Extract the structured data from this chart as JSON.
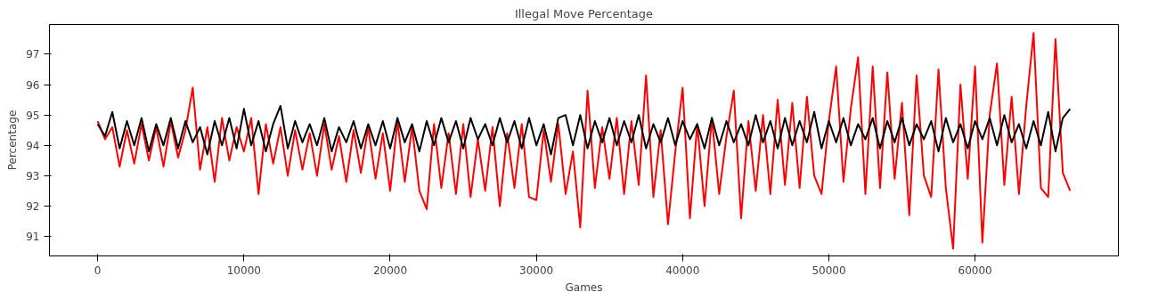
{
  "chart_data": {
    "type": "line",
    "title": "Illegal Move Percentage",
    "xlabel": "Games",
    "ylabel": "Percentage",
    "x": [
      0,
      500,
      1000,
      1500,
      2000,
      2500,
      3000,
      3500,
      4000,
      4500,
      5000,
      5500,
      6000,
      6500,
      7000,
      7500,
      8000,
      8500,
      9000,
      9500,
      10000,
      10500,
      11000,
      11500,
      12000,
      12500,
      13000,
      13500,
      14000,
      14500,
      15000,
      15500,
      16000,
      16500,
      17000,
      17500,
      18000,
      18500,
      19000,
      19500,
      20000,
      20500,
      21000,
      21500,
      22000,
      22500,
      23000,
      23500,
      24000,
      24500,
      25000,
      25500,
      26000,
      26500,
      27000,
      27500,
      28000,
      28500,
      29000,
      29500,
      30000,
      30500,
      31000,
      31500,
      32000,
      32500,
      33000,
      33500,
      34000,
      34500,
      35000,
      35500,
      36000,
      36500,
      37000,
      37500,
      38000,
      38500,
      39000,
      39500,
      40000,
      40500,
      41000,
      41500,
      42000,
      42500,
      43000,
      43500,
      44000,
      44500,
      45000,
      45500,
      46000,
      46500,
      47000,
      47500,
      48000,
      48500,
      49000,
      49500,
      50000,
      50500,
      51000,
      51500,
      52000,
      52500,
      53000,
      53500,
      54000,
      54500,
      55000,
      55500,
      56000,
      56500,
      57000,
      57500,
      58000,
      58500,
      59000,
      59500,
      60000,
      60500,
      61000,
      61500,
      62000,
      62500,
      63000,
      63500,
      64000,
      64500,
      65000,
      65500,
      66000,
      66500
    ],
    "series": [
      {
        "color": "#ff0000",
        "values": [
          94.8,
          94.2,
          94.6,
          93.3,
          94.5,
          93.4,
          94.7,
          93.5,
          94.6,
          93.3,
          94.8,
          93.6,
          94.5,
          95.9,
          93.2,
          94.6,
          92.8,
          94.9,
          93.5,
          94.6,
          93.8,
          94.9,
          92.4,
          94.7,
          93.4,
          94.6,
          93.0,
          94.5,
          93.2,
          94.4,
          93.0,
          94.7,
          93.2,
          94.3,
          92.8,
          94.5,
          93.1,
          94.6,
          92.9,
          94.4,
          92.5,
          94.8,
          92.8,
          94.6,
          92.5,
          91.9,
          94.7,
          92.6,
          94.4,
          92.4,
          94.7,
          92.3,
          94.2,
          92.5,
          94.6,
          92.0,
          94.4,
          92.6,
          94.7,
          92.3,
          92.2,
          94.5,
          92.8,
          94.7,
          92.4,
          93.8,
          91.3,
          95.8,
          92.6,
          94.6,
          92.9,
          94.9,
          92.4,
          94.8,
          92.7,
          96.3,
          92.3,
          94.5,
          91.4,
          93.8,
          95.9,
          91.6,
          94.7,
          92.0,
          94.9,
          92.4,
          94.3,
          95.8,
          91.6,
          94.8,
          92.5,
          95.0,
          92.4,
          95.5,
          92.7,
          95.4,
          92.6,
          95.6,
          93.0,
          92.4,
          94.8,
          96.6,
          92.8,
          95.2,
          96.9,
          92.4,
          96.6,
          92.6,
          96.4,
          92.9,
          95.4,
          91.7,
          96.3,
          93.0,
          92.3,
          96.5,
          92.6,
          90.6,
          96.0,
          92.9,
          96.6,
          90.8,
          95.0,
          96.7,
          92.7,
          95.6,
          92.4,
          95.3,
          97.7,
          92.6,
          92.3,
          97.5,
          93.1,
          92.5
        ]
      },
      {
        "color": "#000000",
        "values": [
          94.7,
          94.3,
          95.1,
          93.9,
          94.8,
          94.0,
          94.9,
          93.8,
          94.7,
          94.0,
          94.9,
          93.9,
          94.8,
          94.1,
          94.6,
          93.7,
          94.8,
          94.0,
          94.9,
          93.9,
          95.2,
          94.0,
          94.8,
          93.8,
          94.7,
          95.3,
          93.9,
          94.8,
          94.1,
          94.7,
          94.0,
          94.9,
          93.8,
          94.6,
          94.1,
          94.8,
          93.9,
          94.7,
          94.0,
          94.8,
          93.9,
          94.9,
          94.1,
          94.7,
          93.8,
          94.8,
          94.0,
          94.9,
          94.1,
          94.8,
          93.9,
          94.9,
          94.2,
          94.7,
          94.0,
          94.9,
          94.1,
          94.8,
          93.9,
          94.9,
          94.0,
          94.7,
          93.7,
          94.9,
          95.0,
          94.0,
          95.0,
          93.9,
          94.8,
          94.1,
          94.9,
          94.0,
          94.8,
          94.1,
          95.0,
          93.9,
          94.7,
          94.1,
          94.9,
          94.0,
          94.8,
          94.2,
          94.7,
          93.9,
          94.9,
          94.0,
          94.8,
          94.1,
          94.7,
          94.0,
          95.0,
          94.1,
          94.8,
          93.9,
          94.9,
          94.0,
          94.8,
          94.1,
          95.1,
          93.9,
          94.8,
          94.1,
          94.9,
          94.0,
          94.7,
          94.2,
          94.9,
          93.9,
          94.8,
          94.1,
          94.9,
          94.0,
          94.7,
          94.2,
          94.8,
          93.8,
          94.9,
          94.1,
          94.7,
          93.9,
          94.8,
          94.2,
          94.9,
          94.0,
          95.0,
          94.1,
          94.7,
          93.9,
          94.8,
          94.0,
          95.1,
          93.8,
          94.9,
          95.2
        ]
      }
    ],
    "xlim": [
      -3300,
      69800
    ],
    "ylim": [
      90.36,
      97.98
    ],
    "xticks": [
      0,
      10000,
      20000,
      30000,
      40000,
      50000,
      60000
    ],
    "yticks": [
      91,
      92,
      93,
      94,
      95,
      96,
      97
    ],
    "grid": false,
    "line_style": "solid"
  }
}
